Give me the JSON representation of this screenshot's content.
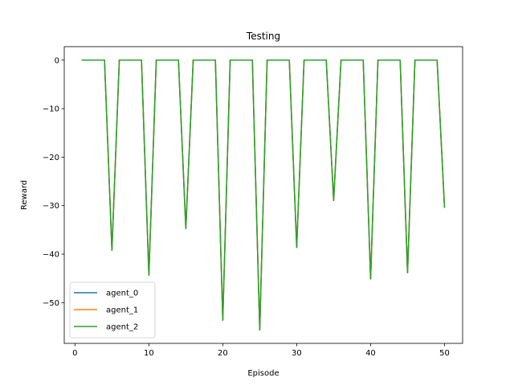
{
  "chart_data": {
    "type": "line",
    "title": "Testing",
    "xlabel": "Episode",
    "ylabel": "Reward",
    "xlim": [
      -1.45,
      52.45
    ],
    "ylim": [
      -58.4,
      2.78
    ],
    "xticks": [
      0,
      10,
      20,
      30,
      40,
      50
    ],
    "yticks": [
      0,
      -10,
      -20,
      -30,
      -40,
      -50
    ],
    "grid": false,
    "legend_position": "lower-left",
    "x": [
      1,
      2,
      3,
      4,
      5,
      6,
      7,
      8,
      9,
      10,
      11,
      12,
      13,
      14,
      15,
      16,
      17,
      18,
      19,
      20,
      21,
      22,
      23,
      24,
      25,
      26,
      27,
      28,
      29,
      30,
      31,
      32,
      33,
      34,
      35,
      36,
      37,
      38,
      39,
      40,
      41,
      42,
      43,
      44,
      45,
      46,
      47,
      48,
      49,
      50
    ],
    "series": [
      {
        "name": "agent_0",
        "color": "#1f77b4",
        "values": [
          0,
          0,
          0,
          0,
          -39.2,
          0,
          0,
          0,
          0,
          -44.3,
          0,
          0,
          0,
          0,
          -34.7,
          0,
          0,
          0,
          0,
          -53.6,
          0,
          0,
          0,
          0,
          -55.6,
          0,
          0,
          0,
          0,
          -38.6,
          0,
          0,
          0,
          0,
          -28.9,
          0,
          0,
          0,
          0,
          -45.1,
          0,
          0,
          0,
          0,
          -43.8,
          0,
          0,
          0,
          0,
          -30.3
        ]
      },
      {
        "name": "agent_1",
        "color": "#ff7f0e",
        "values": [
          0,
          0,
          0,
          0,
          -39.2,
          0,
          0,
          0,
          0,
          -44.3,
          0,
          0,
          0,
          0,
          -34.7,
          0,
          0,
          0,
          0,
          -53.6,
          0,
          0,
          0,
          0,
          -55.6,
          0,
          0,
          0,
          0,
          -38.6,
          0,
          0,
          0,
          0,
          -28.9,
          0,
          0,
          0,
          0,
          -45.1,
          0,
          0,
          0,
          0,
          -43.8,
          0,
          0,
          0,
          0,
          -30.3
        ]
      },
      {
        "name": "agent_2",
        "color": "#2ca02c",
        "values": [
          0,
          0,
          0,
          0,
          -39.2,
          0,
          0,
          0,
          0,
          -44.3,
          0,
          0,
          0,
          0,
          -34.7,
          0,
          0,
          0,
          0,
          -53.6,
          0,
          0,
          0,
          0,
          -55.6,
          0,
          0,
          0,
          0,
          -38.6,
          0,
          0,
          0,
          0,
          -28.9,
          0,
          0,
          0,
          0,
          -45.1,
          0,
          0,
          0,
          0,
          -43.8,
          0,
          0,
          0,
          0,
          -30.3
        ]
      }
    ]
  }
}
